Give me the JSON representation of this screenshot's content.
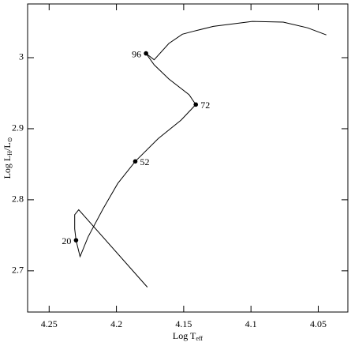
{
  "chart_data": {
    "type": "line",
    "xlabel": [
      {
        "text": "Log T"
      },
      {
        "text": "eff",
        "sub": true
      }
    ],
    "ylabel": [
      {
        "text": "Log L"
      },
      {
        "text": "H",
        "sub": true
      },
      {
        "text": "/L"
      },
      {
        "text": "⊙",
        "sub": true
      }
    ],
    "xlim": [
      4.266,
      4.028
    ],
    "xticks": [
      4.25,
      4.2,
      4.15,
      4.1,
      4.05
    ],
    "ylim": [
      2.642,
      3.0756
    ],
    "yticks": [
      2.7,
      2.8,
      2.9,
      3
    ],
    "series": [
      {
        "color": "#000000",
        "x": [
          4.177,
          4.228,
          4.231,
          4.231,
          4.23,
          4.227,
          4.221,
          4.21,
          4.199,
          4.186,
          4.169,
          4.152,
          4.141,
          4.146,
          4.161,
          4.172,
          4.178,
          4.172,
          4.161,
          4.151,
          4.143,
          4.128,
          4.099,
          4.076,
          4.058,
          4.044
        ],
        "values": [
          2.677,
          2.786,
          2.779,
          2.759,
          2.743,
          2.72,
          2.748,
          2.787,
          2.823,
          2.854,
          2.886,
          2.912,
          2.934,
          2.948,
          2.97,
          2.99,
          3.006,
          2.997,
          3.02,
          3.033,
          3.037,
          3.044,
          3.051,
          3.05,
          3.042,
          3.032
        ]
      }
    ],
    "points": {
      "labels": [
        "20",
        "52",
        "72",
        "96"
      ],
      "x": [
        4.23,
        4.186,
        4.141,
        4.178
      ],
      "values": [
        2.743,
        2.854,
        2.934,
        3.006
      ]
    }
  }
}
